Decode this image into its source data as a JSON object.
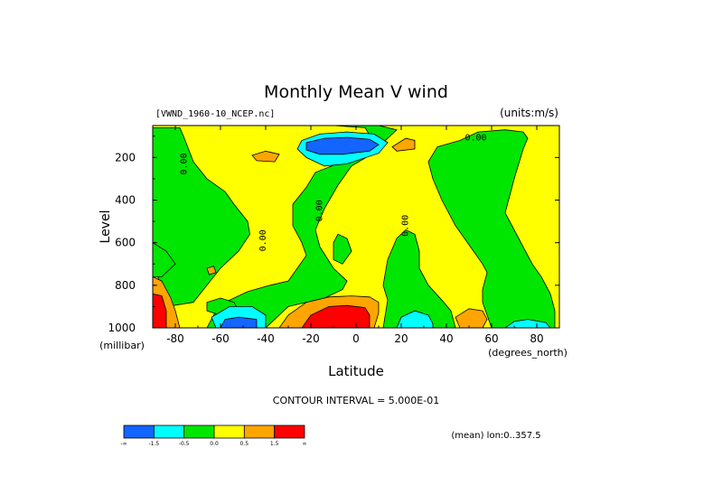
{
  "chart_data": {
    "type": "heatmap",
    "title": "Monthly Mean V wind",
    "dataset_label": "[VWND_1960-10_NCEP.nc]",
    "units_label": "(units:m/s)",
    "xlabel": "Latitude",
    "x_unit": "(degrees_north)",
    "ylabel": "Level",
    "y_unit": "(millibar)",
    "xlim": [
      -90,
      90
    ],
    "ylim": [
      1000,
      50
    ],
    "x_ticks": [
      -80,
      -60,
      -40,
      -20,
      0,
      20,
      40,
      60,
      80
    ],
    "x_tick_labels": [
      "-80",
      "-60",
      "-40",
      "-20",
      "0",
      "20",
      "40",
      "60",
      "80"
    ],
    "y_ticks": [
      200,
      400,
      600,
      800,
      1000
    ],
    "y_tick_labels": [
      "200",
      "400",
      "600",
      "800",
      "1000"
    ],
    "contour_labels": [
      {
        "text": "0.00",
        "lat": -75,
        "level": 230,
        "rotate": -90
      },
      {
        "text": "0.00",
        "lat": -40,
        "level": 590,
        "rotate": -90
      },
      {
        "text": "0.00",
        "lat": -15,
        "level": 450,
        "rotate": -90
      },
      {
        "text": "0.00",
        "lat": 23,
        "level": 520,
        "rotate": -90
      },
      {
        "text": "0.00",
        "lat": 53,
        "level": 120,
        "rotate": 0
      }
    ],
    "colorbar": {
      "levels": [
        "-∞",
        "-1.5",
        "-0.5",
        "0.0",
        "0.5",
        "1.5",
        "∞"
      ],
      "colors": [
        "#1464ff",
        "#00ffff",
        "#00e600",
        "#ffff00",
        "#ffa500",
        "#ff0000"
      ]
    },
    "contour_interval": "CONTOUR INTERVAL = 5.000E-01",
    "mean_note": "(mean) lon:0..357.5",
    "regions": [
      {
        "color": "#ffff00",
        "pts": [
          [
            -90,
            50
          ],
          [
            90,
            50
          ],
          [
            90,
            1000
          ],
          [
            -90,
            1000
          ]
        ]
      },
      {
        "color": "#00e600",
        "pts": [
          [
            -90,
            60
          ],
          [
            -78,
            60
          ],
          [
            -76,
            110
          ],
          [
            -72,
            220
          ],
          [
            -66,
            300
          ],
          [
            -58,
            360
          ],
          [
            -54,
            420
          ],
          [
            -48,
            500
          ],
          [
            -47,
            560
          ],
          [
            -52,
            640
          ],
          [
            -60,
            720
          ],
          [
            -66,
            800
          ],
          [
            -72,
            880
          ],
          [
            -84,
            900
          ],
          [
            -88,
            750
          ],
          [
            -90,
            680
          ]
        ]
      },
      {
        "color": "#00e600",
        "pts": [
          [
            -90,
            600
          ],
          [
            -84,
            640
          ],
          [
            -80,
            700
          ],
          [
            -86,
            760
          ],
          [
            -90,
            760
          ]
        ]
      },
      {
        "color": "#00e600",
        "pts": [
          [
            -36,
            50
          ],
          [
            -20,
            40
          ],
          [
            -10,
            50
          ],
          [
            4,
            60
          ],
          [
            8,
            130
          ],
          [
            2,
            180
          ],
          [
            -6,
            220
          ],
          [
            -18,
            270
          ],
          [
            -22,
            340
          ],
          [
            -28,
            420
          ],
          [
            -28,
            520
          ],
          [
            -24,
            600
          ],
          [
            -22,
            660
          ],
          [
            -26,
            720
          ],
          [
            -30,
            780
          ],
          [
            -38,
            800
          ],
          [
            -48,
            830
          ],
          [
            -58,
            880
          ],
          [
            -62,
            920
          ],
          [
            -66,
            1000
          ],
          [
            -40,
            1000
          ],
          [
            -30,
            900
          ],
          [
            -14,
            860
          ],
          [
            -6,
            820
          ],
          [
            -4,
            780
          ],
          [
            -10,
            720
          ],
          [
            -16,
            620
          ],
          [
            -18,
            540
          ],
          [
            -14,
            440
          ],
          [
            -8,
            330
          ],
          [
            -2,
            240
          ],
          [
            6,
            190
          ],
          [
            12,
            130
          ],
          [
            18,
            70
          ],
          [
            10,
            50
          ]
        ]
      },
      {
        "color": "#00e600",
        "pts": [
          [
            -8,
            560
          ],
          [
            -4,
            580
          ],
          [
            -2,
            640
          ],
          [
            -6,
            700
          ],
          [
            -10,
            680
          ],
          [
            -10,
            600
          ]
        ]
      },
      {
        "color": "#00e600",
        "pts": [
          [
            14,
            870
          ],
          [
            12,
            800
          ],
          [
            14,
            680
          ],
          [
            18,
            580
          ],
          [
            22,
            540
          ],
          [
            26,
            560
          ],
          [
            28,
            640
          ],
          [
            28,
            720
          ],
          [
            32,
            800
          ],
          [
            38,
            870
          ],
          [
            42,
            920
          ],
          [
            44,
            1000
          ],
          [
            12,
            1000
          ]
        ]
      },
      {
        "color": "#00e600",
        "pts": [
          [
            54,
            80
          ],
          [
            66,
            70
          ],
          [
            74,
            80
          ],
          [
            76,
            110
          ],
          [
            74,
            160
          ],
          [
            72,
            230
          ],
          [
            70,
            300
          ],
          [
            68,
            380
          ],
          [
            66,
            460
          ],
          [
            70,
            540
          ],
          [
            74,
            620
          ],
          [
            78,
            700
          ],
          [
            82,
            760
          ],
          [
            86,
            840
          ],
          [
            88,
            920
          ],
          [
            88,
            1000
          ],
          [
            60,
            1000
          ],
          [
            56,
            880
          ],
          [
            56,
            820
          ],
          [
            58,
            740
          ],
          [
            56,
            700
          ],
          [
            52,
            640
          ],
          [
            44,
            520
          ],
          [
            38,
            400
          ],
          [
            34,
            300
          ],
          [
            32,
            220
          ],
          [
            36,
            150
          ],
          [
            46,
            120
          ]
        ]
      },
      {
        "color": "#00e600",
        "pts": [
          [
            -66,
            880
          ],
          [
            -60,
            860
          ],
          [
            -54,
            880
          ],
          [
            -52,
            920
          ],
          [
            -60,
            940
          ],
          [
            -66,
            920
          ]
        ]
      },
      {
        "color": "#00ffff",
        "pts": [
          [
            -24,
            120
          ],
          [
            -16,
            90
          ],
          [
            -4,
            80
          ],
          [
            8,
            90
          ],
          [
            14,
            130
          ],
          [
            10,
            180
          ],
          [
            -4,
            230
          ],
          [
            -14,
            240
          ],
          [
            -22,
            200
          ],
          [
            -26,
            160
          ]
        ]
      },
      {
        "color": "#1464ff",
        "pts": [
          [
            -22,
            130
          ],
          [
            -14,
            110
          ],
          [
            -4,
            105
          ],
          [
            6,
            115
          ],
          [
            10,
            140
          ],
          [
            6,
            170
          ],
          [
            -6,
            185
          ],
          [
            -16,
            185
          ],
          [
            -22,
            165
          ]
        ]
      },
      {
        "color": "#00ffff",
        "pts": [
          [
            -64,
            950
          ],
          [
            -56,
            900
          ],
          [
            -46,
            900
          ],
          [
            -40,
            940
          ],
          [
            -40,
            1000
          ],
          [
            -62,
            1000
          ]
        ]
      },
      {
        "color": "#1464ff",
        "pts": [
          [
            -60,
            1000
          ],
          [
            -58,
            960
          ],
          [
            -52,
            950
          ],
          [
            -44,
            960
          ],
          [
            -44,
            1000
          ]
        ]
      },
      {
        "color": "#00ffff",
        "pts": [
          [
            18,
            1000
          ],
          [
            20,
            950
          ],
          [
            26,
            920
          ],
          [
            32,
            940
          ],
          [
            34,
            980
          ],
          [
            34,
            1000
          ]
        ]
      },
      {
        "color": "#00ffff",
        "pts": [
          [
            66,
            1000
          ],
          [
            70,
            970
          ],
          [
            76,
            960
          ],
          [
            84,
            975
          ],
          [
            86,
            1000
          ]
        ]
      },
      {
        "color": "#ffa500",
        "pts": [
          [
            -34,
            1000
          ],
          [
            -30,
            940
          ],
          [
            -22,
            880
          ],
          [
            -12,
            855
          ],
          [
            -2,
            850
          ],
          [
            6,
            855
          ],
          [
            10,
            880
          ],
          [
            10,
            930
          ],
          [
            8,
            1000
          ]
        ]
      },
      {
        "color": "#ff0000",
        "pts": [
          [
            -24,
            1000
          ],
          [
            -20,
            940
          ],
          [
            -12,
            900
          ],
          [
            -4,
            895
          ],
          [
            4,
            905
          ],
          [
            6,
            940
          ],
          [
            6,
            1000
          ]
        ]
      },
      {
        "color": "#ffa500",
        "pts": [
          [
            -90,
            760
          ],
          [
            -86,
            780
          ],
          [
            -82,
            860
          ],
          [
            -80,
            920
          ],
          [
            -78,
            1000
          ],
          [
            -90,
            1000
          ]
        ]
      },
      {
        "color": "#ff0000",
        "pts": [
          [
            -90,
            840
          ],
          [
            -86,
            850
          ],
          [
            -84,
            920
          ],
          [
            -84,
            1000
          ],
          [
            -90,
            1000
          ]
        ]
      },
      {
        "color": "#ffa500",
        "pts": [
          [
            -66,
            720
          ],
          [
            -63,
            710
          ],
          [
            -62,
            740
          ],
          [
            -65,
            750
          ]
        ]
      },
      {
        "color": "#ffa500",
        "pts": [
          [
            -46,
            190
          ],
          [
            -40,
            170
          ],
          [
            -34,
            185
          ],
          [
            -36,
            220
          ],
          [
            -44,
            215
          ]
        ]
      },
      {
        "color": "#ffa500",
        "pts": [
          [
            16,
            150
          ],
          [
            22,
            110
          ],
          [
            26,
            120
          ],
          [
            26,
            160
          ],
          [
            18,
            170
          ]
        ]
      },
      {
        "color": "#ffa500",
        "pts": [
          [
            44,
            950
          ],
          [
            50,
            910
          ],
          [
            56,
            920
          ],
          [
            58,
            960
          ],
          [
            56,
            1000
          ],
          [
            46,
            1000
          ]
        ]
      }
    ]
  }
}
